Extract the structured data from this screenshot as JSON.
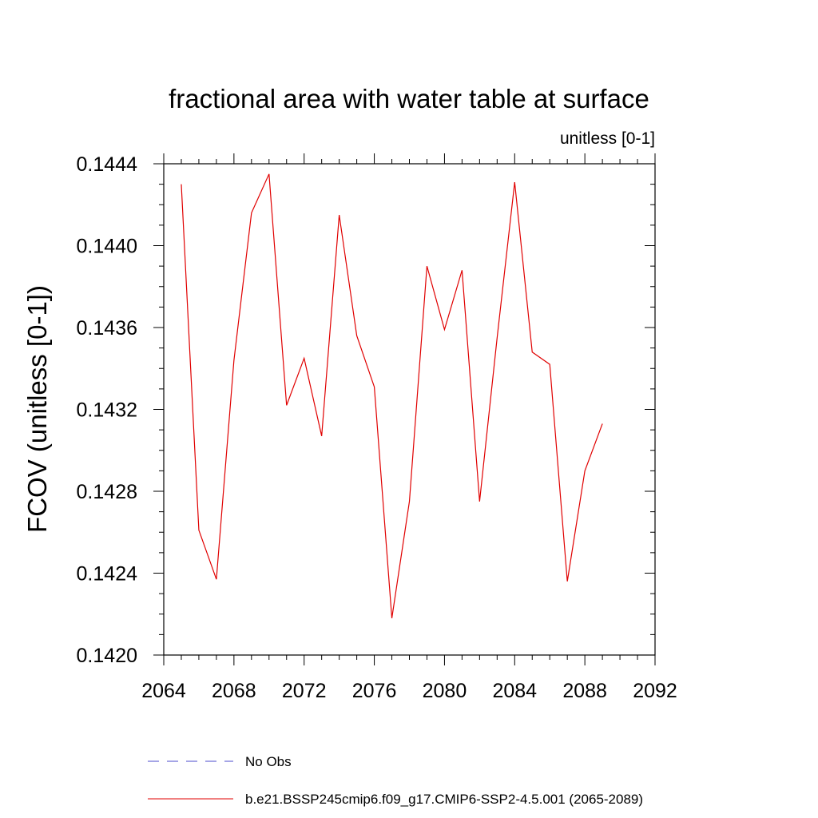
{
  "chart_data": {
    "type": "line",
    "title": "fractional area with water table at surface",
    "subtitle": "unitless [0-1]",
    "xlabel": "",
    "ylabel": "FCOV  (unitless [0-1])",
    "xlim": [
      2064,
      2092
    ],
    "ylim": [
      0.142,
      0.1444
    ],
    "x_ticks": [
      "2064",
      "2068",
      "2072",
      "2076",
      "2080",
      "2084",
      "2088",
      "2092"
    ],
    "y_ticks": [
      "0.1420",
      "0.1424",
      "0.1428",
      "0.1432",
      "0.1436",
      "0.1440",
      "0.1444"
    ],
    "grid": false,
    "legend_position": "bottom",
    "series": [
      {
        "name": "No Obs",
        "color": "#4b4bcc",
        "style": "dashed",
        "x": [],
        "y": []
      },
      {
        "name": "b.e21.BSSP245cmip6.f09_g17.CMIP6-SSP2-4.5.001 (2065-2089)",
        "color": "#e00000",
        "style": "solid",
        "x": [
          2065,
          2066,
          2067,
          2068,
          2069,
          2070,
          2071,
          2072,
          2073,
          2074,
          2075,
          2076,
          2077,
          2078,
          2079,
          2080,
          2081,
          2082,
          2083,
          2084,
          2085,
          2086,
          2087,
          2088,
          2089
        ],
        "y": [
          0.1443,
          0.14261,
          0.14237,
          0.14344,
          0.14416,
          0.14435,
          0.14322,
          0.14345,
          0.14307,
          0.14415,
          0.14356,
          0.14331,
          0.14218,
          0.14275,
          0.1439,
          0.14359,
          0.14388,
          0.14275,
          0.14355,
          0.14431,
          0.14348,
          0.14342,
          0.14236,
          0.1429,
          0.14313
        ]
      }
    ]
  }
}
